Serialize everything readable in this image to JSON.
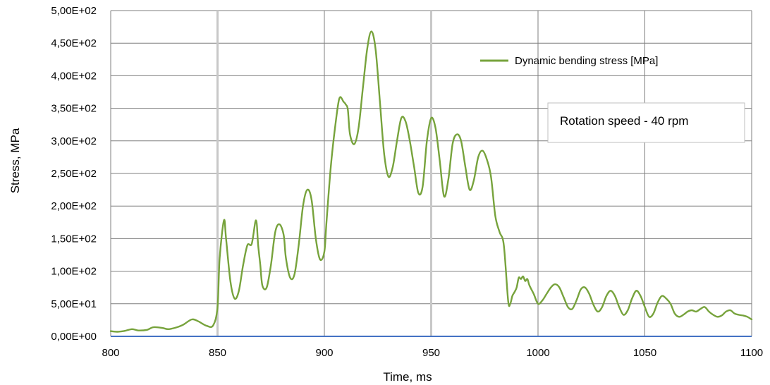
{
  "chart_data": {
    "type": "line",
    "xlabel": "Time, ms",
    "ylabel": "Stress, MPa",
    "xlim": [
      800,
      1100
    ],
    "ylim": [
      0,
      500
    ],
    "x_ticks": [
      "800",
      "850",
      "900",
      "950",
      "1000",
      "1050",
      "1100"
    ],
    "y_ticks": [
      "0,00E+00",
      "5,00E+01",
      "1,00E+02",
      "1,50E+02",
      "2,00E+02",
      "2,50E+02",
      "3,00E+02",
      "3,50E+02",
      "4,00E+02",
      "4,50E+02",
      "5,00E+02"
    ],
    "grid": true,
    "legend_position": "top-right",
    "annotation": "Rotation speed - 40 rpm",
    "colors": {
      "series": "#77a33c",
      "baseline": "#4472c4",
      "grid": "#7f7f7f",
      "grid_emphasis": "#c8c8c8"
    },
    "series": [
      {
        "name": "Dynamic bending stress [MPa]",
        "x": [
          800,
          803,
          806,
          810,
          813,
          817,
          820,
          824,
          827,
          831,
          834,
          838,
          841,
          845,
          848,
          850,
          851,
          853,
          854,
          856,
          858,
          860,
          862,
          864,
          866,
          868,
          869,
          870,
          871,
          873,
          875,
          877,
          879,
          881,
          882,
          884,
          886,
          888,
          890,
          892,
          894,
          896,
          898,
          900,
          901,
          903,
          905,
          907,
          909,
          910,
          911,
          912,
          914,
          916,
          918,
          920,
          922,
          924,
          926,
          928,
          930,
          932,
          934,
          936,
          938,
          940,
          942,
          944,
          946,
          948,
          950,
          952,
          954,
          956,
          958,
          960,
          962,
          964,
          966,
          968,
          970,
          972,
          974,
          976,
          978,
          980,
          982,
          984,
          986,
          987,
          988,
          989,
          990,
          991,
          992,
          993,
          994,
          995,
          996,
          998,
          1000,
          1002,
          1004,
          1006,
          1008,
          1010,
          1012,
          1014,
          1016,
          1018,
          1020,
          1022,
          1024,
          1026,
          1028,
          1030,
          1032,
          1034,
          1036,
          1038,
          1040,
          1042,
          1044,
          1046,
          1048,
          1050,
          1052,
          1054,
          1056,
          1058,
          1060,
          1062,
          1064,
          1066,
          1068,
          1070,
          1072,
          1074,
          1076,
          1078,
          1080,
          1082,
          1084,
          1086,
          1088,
          1090,
          1092,
          1094,
          1096,
          1098,
          1100
        ],
        "y": [
          8,
          7,
          8,
          11,
          9,
          10,
          14,
          13,
          11,
          14,
          18,
          26,
          23,
          16,
          17,
          45,
          120,
          178,
          150,
          85,
          58,
          70,
          110,
          140,
          142,
          178,
          140,
          110,
          78,
          75,
          110,
          160,
          172,
          155,
          120,
          90,
          95,
          140,
          200,
          225,
          210,
          150,
          118,
          130,
          175,
          260,
          320,
          365,
          360,
          356,
          348,
          310,
          295,
          320,
          380,
          440,
          468,
          440,
          360,
          280,
          245,
          260,
          300,
          335,
          330,
          300,
          260,
          220,
          230,
          300,
          335,
          320,
          270,
          215,
          240,
          295,
          310,
          300,
          260,
          225,
          240,
          275,
          285,
          272,
          245,
          185,
          160,
          140,
          55,
          50,
          62,
          68,
          75,
          90,
          88,
          92,
          85,
          88,
          78,
          65,
          50,
          55,
          65,
          75,
          80,
          75,
          60,
          45,
          42,
          55,
          72,
          75,
          65,
          48,
          38,
          45,
          62,
          70,
          62,
          45,
          33,
          40,
          58,
          70,
          62,
          45,
          30,
          35,
          52,
          62,
          58,
          50,
          35,
          30,
          33,
          38,
          40,
          38,
          42,
          45,
          38,
          33,
          30,
          32,
          38,
          40,
          35,
          33,
          32,
          30,
          26
        ]
      }
    ]
  }
}
